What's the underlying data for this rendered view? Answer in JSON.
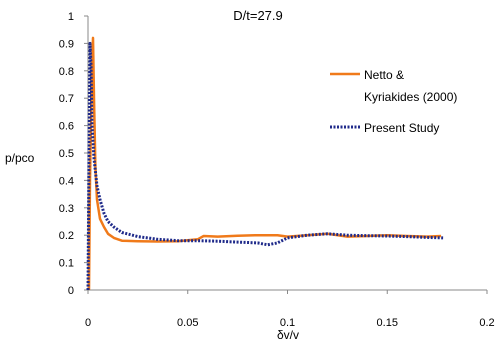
{
  "chart_data": {
    "type": "line",
    "title": "D/t=27.9",
    "xlabel": "δv/v",
    "ylabel": "p/pco",
    "xlim": [
      0,
      0.2
    ],
    "ylim": [
      0,
      1
    ],
    "x_ticks": [
      "0",
      "0.05",
      "0.1",
      "0.15",
      "0.2"
    ],
    "y_ticks": [
      "0",
      "0.1",
      "0.2",
      "0.3",
      "0.4",
      "0.5",
      "0.6",
      "0.7",
      "0.8",
      "0.9",
      "1"
    ],
    "grid": false,
    "legend_position": "right",
    "series": [
      {
        "name": "Netto & Kyriakides (2000)",
        "color": "#f07a1a",
        "style": "solid",
        "points": [
          [
            0.0005,
            0.0
          ],
          [
            0.001,
            0.4
          ],
          [
            0.0018,
            0.75
          ],
          [
            0.0025,
            0.92
          ],
          [
            0.003,
            0.7
          ],
          [
            0.0037,
            0.45
          ],
          [
            0.0045,
            0.33
          ],
          [
            0.006,
            0.26
          ],
          [
            0.008,
            0.23
          ],
          [
            0.01,
            0.205
          ],
          [
            0.013,
            0.19
          ],
          [
            0.017,
            0.18
          ],
          [
            0.025,
            0.178
          ],
          [
            0.035,
            0.177
          ],
          [
            0.045,
            0.178
          ],
          [
            0.055,
            0.185
          ],
          [
            0.058,
            0.197
          ],
          [
            0.065,
            0.195
          ],
          [
            0.075,
            0.198
          ],
          [
            0.085,
            0.2
          ],
          [
            0.095,
            0.2
          ],
          [
            0.1,
            0.195
          ],
          [
            0.11,
            0.2
          ],
          [
            0.12,
            0.205
          ],
          [
            0.13,
            0.195
          ],
          [
            0.14,
            0.197
          ],
          [
            0.15,
            0.2
          ],
          [
            0.16,
            0.197
          ],
          [
            0.17,
            0.195
          ],
          [
            0.177,
            0.197
          ]
        ]
      },
      {
        "name": "Present Study",
        "color": "#1f2a8a",
        "style": "dotted",
        "points": [
          [
            0.0,
            0.0
          ],
          [
            0.0005,
            0.5
          ],
          [
            0.001,
            0.9
          ],
          [
            0.0015,
            0.82
          ],
          [
            0.002,
            0.6
          ],
          [
            0.003,
            0.48
          ],
          [
            0.0045,
            0.38
          ],
          [
            0.006,
            0.33
          ],
          [
            0.008,
            0.28
          ],
          [
            0.01,
            0.25
          ],
          [
            0.013,
            0.23
          ],
          [
            0.017,
            0.21
          ],
          [
            0.025,
            0.195
          ],
          [
            0.035,
            0.185
          ],
          [
            0.045,
            0.18
          ],
          [
            0.055,
            0.18
          ],
          [
            0.065,
            0.178
          ],
          [
            0.075,
            0.175
          ],
          [
            0.085,
            0.172
          ],
          [
            0.09,
            0.165
          ],
          [
            0.095,
            0.172
          ],
          [
            0.1,
            0.19
          ],
          [
            0.11,
            0.2
          ],
          [
            0.12,
            0.205
          ],
          [
            0.13,
            0.2
          ],
          [
            0.14,
            0.198
          ],
          [
            0.15,
            0.197
          ],
          [
            0.16,
            0.195
          ],
          [
            0.17,
            0.192
          ],
          [
            0.178,
            0.19
          ]
        ]
      }
    ]
  }
}
